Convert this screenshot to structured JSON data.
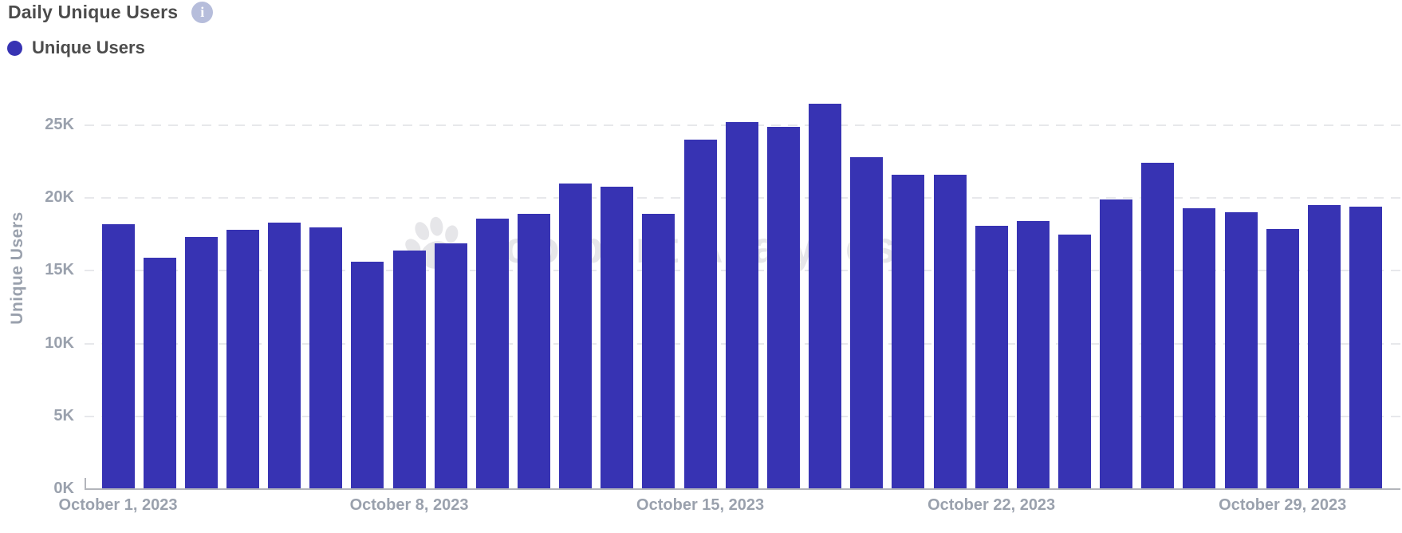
{
  "header": {
    "title": "Daily Unique Users"
  },
  "legend": {
    "label": "Unique Users",
    "dot_color": "#3733b3"
  },
  "watermark": {
    "text": "Footprint Analytics"
  },
  "y_axis": {
    "title": "Unique Users",
    "tick_labels": [
      "0K",
      "5K",
      "10K",
      "15K",
      "20K",
      "25K"
    ]
  },
  "x_axis": {
    "tick_labels": [
      "October 1, 2023",
      "October 8, 2023",
      "October 15, 2023",
      "October 22, 2023",
      "October 29, 2023"
    ]
  },
  "colors": {
    "bar": "#3733b3",
    "axis_line": "#b3b5bb",
    "gridline": "#e7e8eb",
    "tick_text": "#9aa1ad",
    "title_text": "#4c4c4c",
    "info_icon_bg": "#b6bddb",
    "watermark": "#e6e6e9"
  },
  "chart_data": {
    "type": "bar",
    "title": "Daily Unique Users",
    "series_name": "Unique Users",
    "categories": [
      "October 1, 2023",
      "October 2, 2023",
      "October 3, 2023",
      "October 4, 2023",
      "October 5, 2023",
      "October 6, 2023",
      "October 7, 2023",
      "October 8, 2023",
      "October 9, 2023",
      "October 10, 2023",
      "October 11, 2023",
      "October 12, 2023",
      "October 13, 2023",
      "October 14, 2023",
      "October 15, 2023",
      "October 16, 2023",
      "October 17, 2023",
      "October 18, 2023",
      "October 19, 2023",
      "October 20, 2023",
      "October 21, 2023",
      "October 22, 2023",
      "October 23, 2023",
      "October 24, 2023",
      "October 25, 2023",
      "October 26, 2023",
      "October 27, 2023",
      "October 28, 2023",
      "October 29, 2023",
      "October 30, 2023",
      "October 31, 2023"
    ],
    "values": [
      18200,
      15900,
      17300,
      17800,
      18300,
      18000,
      15600,
      16400,
      16900,
      18600,
      18900,
      21000,
      20800,
      18900,
      24000,
      25200,
      24900,
      26500,
      22800,
      21600,
      21600,
      18100,
      18400,
      17500,
      19900,
      22400,
      19300,
      19000,
      17900,
      19500,
      19400
    ],
    "xlabel": "",
    "ylabel": "Unique Users",
    "ylim": [
      0,
      27500
    ],
    "y_tick_step": 5000,
    "grid": "horizontal-dashed",
    "legend_position": "top-left"
  }
}
